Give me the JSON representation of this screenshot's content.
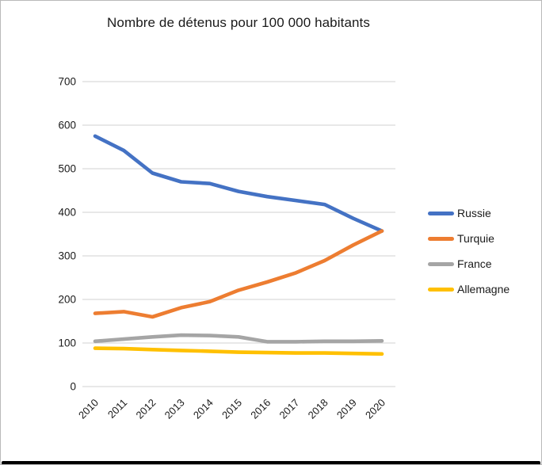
{
  "title": "Nombre de détenus pour 100 000 habitants",
  "colors": {
    "russie": "#4472C4",
    "turquie": "#ED7D31",
    "france": "#A5A5A5",
    "allemagne": "#FFC000",
    "gridline": "#D9D9D9",
    "axis_text": "#1a1a1a",
    "bottom_bar": "#000000"
  },
  "chart_data": {
    "type": "line",
    "title": "Nombre de détenus pour 100 000 habitants",
    "x": [
      "2010",
      "2011",
      "2012",
      "2013",
      "2014",
      "2015",
      "2016",
      "2017",
      "2018",
      "2019",
      "2020"
    ],
    "series": [
      {
        "name": "Russie",
        "color": "#4472C4",
        "values": [
          575,
          542,
          490,
          470,
          466,
          448,
          436,
          427,
          418,
          386,
          357
        ]
      },
      {
        "name": "Turquie",
        "color": "#ED7D31",
        "values": [
          168,
          172,
          160,
          181,
          195,
          221,
          240,
          261,
          289,
          325,
          357
        ]
      },
      {
        "name": "France",
        "color": "#A5A5A5",
        "values": [
          104,
          109,
          114,
          118,
          117,
          114,
          103,
          103,
          104,
          104,
          105
        ]
      },
      {
        "name": "Allemagne",
        "color": "#FFC000",
        "values": [
          88,
          87,
          85,
          83,
          81,
          79,
          78,
          77,
          77,
          76,
          75
        ]
      }
    ],
    "xlabel": "",
    "ylabel": "",
    "ylim": [
      0,
      700
    ],
    "ytick_step": 100,
    "ytick_labels": [
      "0",
      "100",
      "200",
      "300",
      "400",
      "500",
      "600",
      "700"
    ],
    "grid": true,
    "legend_position": "right"
  }
}
